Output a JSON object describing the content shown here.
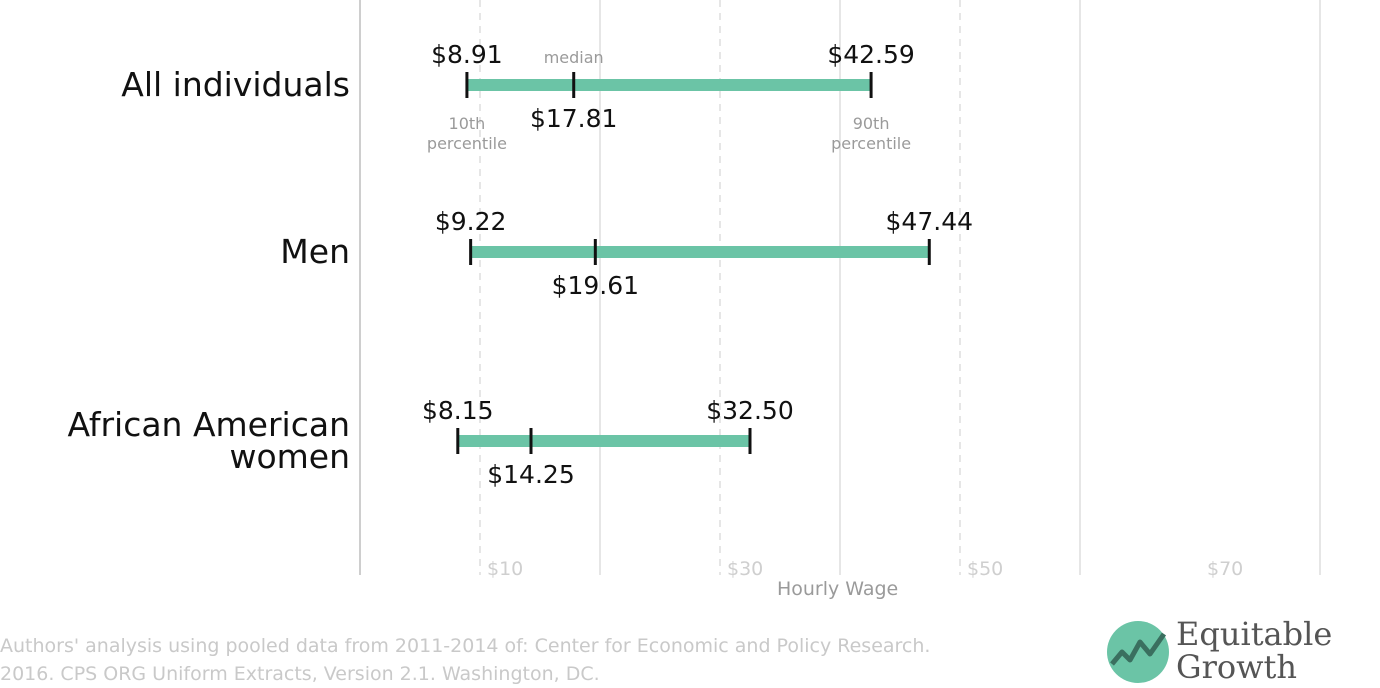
{
  "chart_data": {
    "type": "range",
    "xlabel": "Hourly Wage",
    "xlim": [
      0,
      80
    ],
    "xticks": [
      {
        "value": 10,
        "label": "$10"
      },
      {
        "value": 30,
        "label": "$30"
      },
      {
        "value": 50,
        "label": "$50"
      },
      {
        "value": 70,
        "label": "$70"
      }
    ],
    "grid_solid": [
      20,
      40,
      60,
      80
    ],
    "grid_dashed": [
      10,
      30,
      50
    ],
    "bar_color": "#6bc4a6",
    "series": [
      {
        "category": "All individuals",
        "p10": 8.91,
        "median": 17.81,
        "p90": 42.59,
        "p10_label": "$8.91",
        "median_label": "$17.81",
        "p90_label": "$42.59"
      },
      {
        "category": "Men",
        "p10": 9.22,
        "median": 19.61,
        "p90": 47.44,
        "p10_label": "$9.22",
        "median_label": "$19.61",
        "p90_label": "$47.44"
      },
      {
        "category": "African American women",
        "p10": 8.15,
        "median": 14.25,
        "p90": 32.5,
        "p10_label": "$8.15",
        "median_label": "$14.25",
        "p90_label": "$32.50"
      }
    ],
    "annotations": {
      "median": "median",
      "p10": [
        "10th",
        "percentile"
      ],
      "p90": [
        "90th",
        "percentile"
      ]
    }
  },
  "source": {
    "line1": "Authors' analysis using pooled data from 2011-2014 of: Center for Economic and Policy Research.",
    "line2": "2016. CPS ORG Uniform Extracts, Version 2.1. Washington, DC."
  },
  "logo": {
    "line1": "Equitable",
    "line2": "Growth",
    "color": "#6bc4a6"
  }
}
